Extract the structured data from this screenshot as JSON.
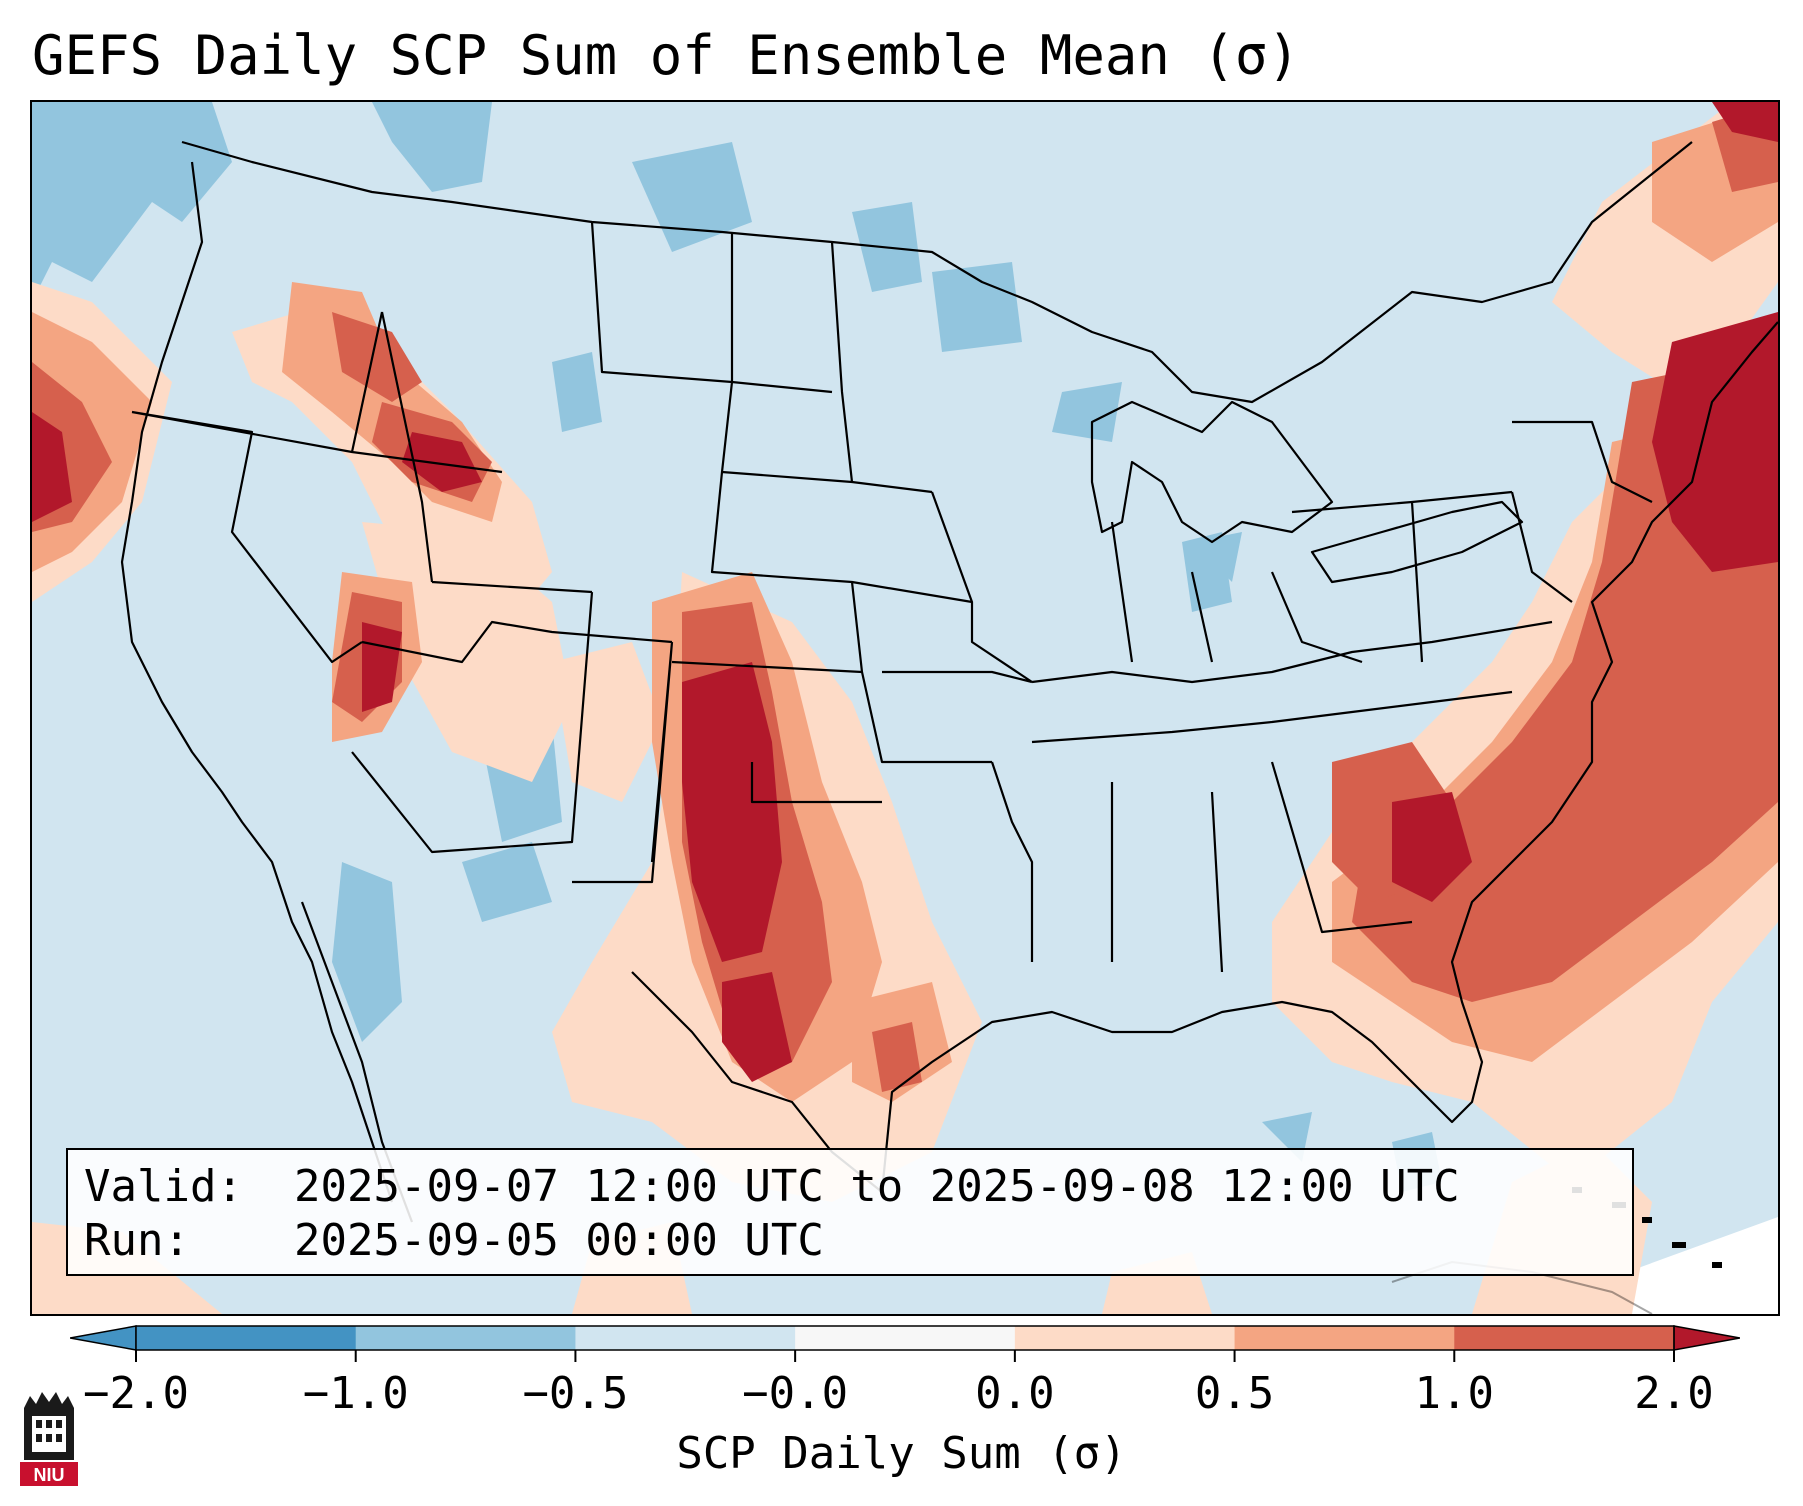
{
  "title": "GEFS Daily SCP Sum of Ensemble Mean (σ)",
  "info": {
    "valid_label": "Valid:",
    "valid_value": "2025-09-07 12:00 UTC to 2025-09-08 12:00 UTC",
    "run_label": "Run:",
    "run_value": "2025-09-05 00:00 UTC"
  },
  "colorbar": {
    "label": "SCP Daily Sum (σ)",
    "ticks": [
      "−2.0",
      "−1.0",
      "−0.5",
      "−0.0",
      "0.0",
      "0.5",
      "1.0",
      "2.0"
    ],
    "bins": [
      {
        "range": "< −2.0",
        "color": "#4393c3"
      },
      {
        "range": "−2.0 to −1.0",
        "color": "#4393c3"
      },
      {
        "range": "−1.0 to −0.5",
        "color": "#92c5de"
      },
      {
        "range": "−0.5 to −0.0",
        "color": "#d1e5f0"
      },
      {
        "range": "−0.0 to 0.0",
        "color": "#f7f7f7"
      },
      {
        "range": "0.0 to 0.5",
        "color": "#fddbc7"
      },
      {
        "range": "0.5 to 1.0",
        "color": "#f4a582"
      },
      {
        "range": "1.0 to 2.0",
        "color": "#d6604d"
      },
      {
        "range": "> 2.0",
        "color": "#b2182b"
      }
    ]
  },
  "colors": {
    "background_field": "#d1e5f0",
    "low": "#92c5de",
    "light_positive": "#fddbc7",
    "mid_positive": "#f4a582",
    "high_positive": "#d6604d",
    "extreme_positive": "#b2182b",
    "border": "#000000"
  },
  "logo": {
    "text": "NIU",
    "color": "#c8102e"
  }
}
